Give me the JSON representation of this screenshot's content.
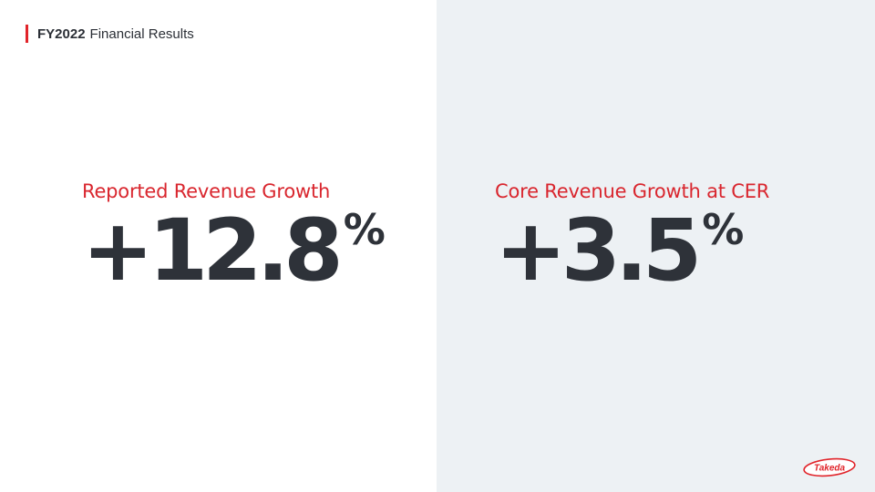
{
  "header": {
    "bold": "FY2022",
    "text": "Financial Results"
  },
  "metrics": [
    {
      "label": "Reported Revenue Growth",
      "value": "+12.8",
      "unit": "%"
    },
    {
      "label": "Core Revenue Growth at CER",
      "value": "+3.5",
      "unit": "%"
    }
  ],
  "logo": {
    "text": "Takeda",
    "color": "#e1242a"
  },
  "colors": {
    "accent": "#e1242a",
    "label": "#d9262e",
    "value": "#2e3239",
    "panel": "#edf1f4"
  }
}
